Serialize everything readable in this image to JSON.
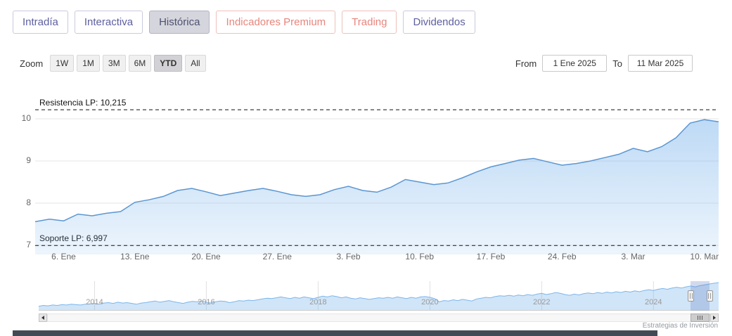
{
  "tabs": [
    {
      "label": "Intradía",
      "selected": false,
      "style": "purple"
    },
    {
      "label": "Interactiva",
      "selected": false,
      "style": "purple"
    },
    {
      "label": "Histórica",
      "selected": true,
      "style": "purple"
    },
    {
      "label": "Indicadores Premium",
      "selected": false,
      "style": "salmon"
    },
    {
      "label": "Trading",
      "selected": false,
      "style": "salmon"
    },
    {
      "label": "Dividendos",
      "selected": false,
      "style": "purple"
    }
  ],
  "toolbar": {
    "zoom_label": "Zoom",
    "zoom_buttons": [
      {
        "label": "1W",
        "selected": false
      },
      {
        "label": "1M",
        "selected": false
      },
      {
        "label": "3M",
        "selected": false
      },
      {
        "label": "6M",
        "selected": false
      },
      {
        "label": "YTD",
        "selected": true
      },
      {
        "label": "All",
        "selected": false
      }
    ],
    "from_label": "From",
    "from_value": "1 Ene 2025",
    "to_label": "To",
    "to_value": "11 Mar 2025"
  },
  "colors": {
    "accent_purple": "#5d60a0",
    "accent_salmon": "#e8857c",
    "series_line": "#5b96d2",
    "series_fill": "#7cb5ec",
    "selection_mask": "rgba(102,133,194,0.3)"
  },
  "chart_data": [
    {
      "id": "main-price-chart",
      "type": "area",
      "title": "",
      "x_unit": "trading days, 2 Ene 2025 - 11 Mar 2025",
      "values": [
        7.56,
        7.62,
        7.58,
        7.74,
        7.7,
        7.76,
        7.8,
        8.02,
        8.08,
        8.16,
        8.3,
        8.35,
        8.27,
        8.18,
        8.24,
        8.3,
        8.35,
        8.28,
        8.2,
        8.16,
        8.2,
        8.32,
        8.4,
        8.3,
        8.26,
        8.38,
        8.56,
        8.5,
        8.44,
        8.48,
        8.6,
        8.74,
        8.86,
        8.94,
        9.02,
        9.06,
        8.98,
        8.9,
        8.94,
        9.0,
        9.08,
        9.16,
        9.3,
        9.22,
        9.34,
        9.55,
        9.9,
        9.98,
        9.93
      ],
      "xticks": [
        {
          "index": 2,
          "label": "6. Ene"
        },
        {
          "index": 7,
          "label": "13. Ene"
        },
        {
          "index": 12,
          "label": "20. Ene"
        },
        {
          "index": 17,
          "label": "27. Ene"
        },
        {
          "index": 22,
          "label": "3. Feb"
        },
        {
          "index": 27,
          "label": "10. Feb"
        },
        {
          "index": 32,
          "label": "17. Feb"
        },
        {
          "index": 37,
          "label": "24. Feb"
        },
        {
          "index": 42,
          "label": "3. Mar"
        },
        {
          "index": 47,
          "label": "10. Mar"
        }
      ],
      "yticks": [
        7,
        8,
        9,
        10
      ],
      "ylim": [
        6.783,
        10.65
      ],
      "grid": true,
      "line_color": "#5b96d2",
      "fill_color": "#7cb5ec",
      "annotations": [
        {
          "label": "Resistencia LP: 10,215",
          "value": 10.215,
          "style": "dashed"
        },
        {
          "label": "Soporte LP: 6,997",
          "value": 6.997,
          "style": "dashed"
        }
      ]
    },
    {
      "id": "navigator-chart",
      "type": "area",
      "x_unit": "monthly, Ene 2013 - Mar 2025",
      "values": [
        4.1,
        4.3,
        4.2,
        4.4,
        4.3,
        4.5,
        4.4,
        4.6,
        4.5,
        4.4,
        4.6,
        4.7,
        4.8,
        4.6,
        4.9,
        5.0,
        4.8,
        5.1,
        4.9,
        5.0,
        4.8,
        4.6,
        4.9,
        5.0,
        5.2,
        5.4,
        5.1,
        5.3,
        5.5,
        5.2,
        5.0,
        4.8,
        5.1,
        5.3,
        5.2,
        5.4,
        5.1,
        4.9,
        5.2,
        5.4,
        5.3,
        5.0,
        5.2,
        5.5,
        5.4,
        5.6,
        5.5,
        5.7,
        5.9,
        6.1,
        6.0,
        6.2,
        6.4,
        6.2,
        6.0,
        6.3,
        6.1,
        6.4,
        6.2,
        6.0,
        6.3,
        6.6,
        6.4,
        6.7,
        6.5,
        6.2,
        6.4,
        6.1,
        5.9,
        6.2,
        6.0,
        5.8,
        6.0,
        6.2,
        6.1,
        6.3,
        6.1,
        6.4,
        6.2,
        6.0,
        6.3,
        6.1,
        6.4,
        6.5,
        6.3,
        6.0,
        5.2,
        5.5,
        5.4,
        5.7,
        5.5,
        5.8,
        5.6,
        5.4,
        5.9,
        6.1,
        6.3,
        6.2,
        6.5,
        6.7,
        6.6,
        6.8,
        6.6,
        6.9,
        6.7,
        7.0,
        6.8,
        7.1,
        7.3,
        7.0,
        7.2,
        7.5,
        7.3,
        7.0,
        6.8,
        7.1,
        6.9,
        7.2,
        7.4,
        7.2,
        7.5,
        7.3,
        7.6,
        7.4,
        7.7,
        7.5,
        7.8,
        7.6,
        7.9,
        7.7,
        8.0,
        8.2,
        8.0,
        8.3,
        8.5,
        8.3,
        8.6,
        8.8,
        8.6,
        8.9,
        9.1,
        8.9,
        9.2,
        9.4,
        9.6,
        9.8,
        9.95
      ],
      "xticks": [
        {
          "index": 12,
          "label": "2014"
        },
        {
          "index": 36,
          "label": "2016"
        },
        {
          "index": 60,
          "label": "2018"
        },
        {
          "index": 84,
          "label": "2020"
        },
        {
          "index": 108,
          "label": "2022"
        },
        {
          "index": 132,
          "label": "2024"
        }
      ],
      "ylim": [
        3.0,
        10.3
      ],
      "grid": true,
      "legend": "none",
      "line_color": "#7cb5ec",
      "fill_color": "rgba(124,181,236,0.35)",
      "selection": {
        "from_index": 140,
        "to_index": 144
      }
    }
  ],
  "watermark": "Estrategias de Inversión"
}
